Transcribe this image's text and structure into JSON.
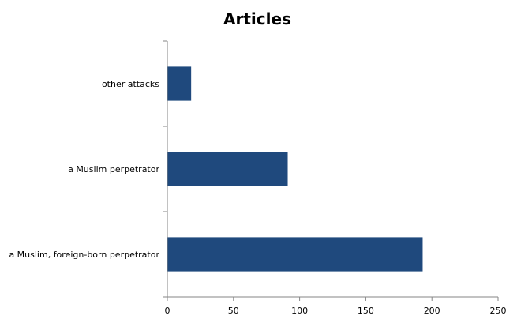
{
  "chart_data": {
    "type": "bar",
    "orientation": "horizontal",
    "title": "Articles",
    "categories": [
      "other attacks",
      "a Muslim perpetrator",
      "a Muslim, foreign-born perpetrator"
    ],
    "values": [
      18,
      91,
      193
    ],
    "xlim": [
      0,
      250
    ],
    "x_ticks": [
      "0",
      "50",
      "100",
      "150",
      "200",
      "250"
    ],
    "grid": false,
    "legend": "none",
    "bar_color": "#1F497D"
  }
}
